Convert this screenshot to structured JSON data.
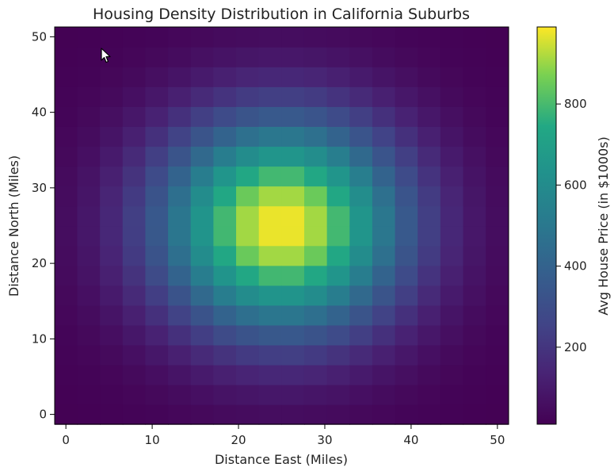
{
  "chart_data": {
    "type": "heatmap",
    "title": "Housing Density Distribution in California Suburbs",
    "xlabel": "Distance East (Miles)",
    "ylabel": "Distance North (Miles)",
    "colorbar_label": "Avg House Price (in $1000s)",
    "colormap": "viridis",
    "xlim": [
      -1.3,
      51.3
    ],
    "ylim": [
      -1.3,
      51.3
    ],
    "x_ticks": [
      0,
      10,
      20,
      30,
      40,
      50
    ],
    "y_ticks": [
      0,
      10,
      20,
      30,
      40,
      50
    ],
    "grid_cells": 20,
    "cell_spacing": 2.63,
    "center": [
      25,
      25
    ],
    "peak_value": 990,
    "min_value": 10,
    "falloff_sigma": 10,
    "colorbar_range": [
      10,
      990
    ],
    "colorbar_ticks": [
      200,
      400,
      600,
      800
    ],
    "grid": false
  },
  "ui": {
    "cursor": "arrow-cursor-icon"
  }
}
